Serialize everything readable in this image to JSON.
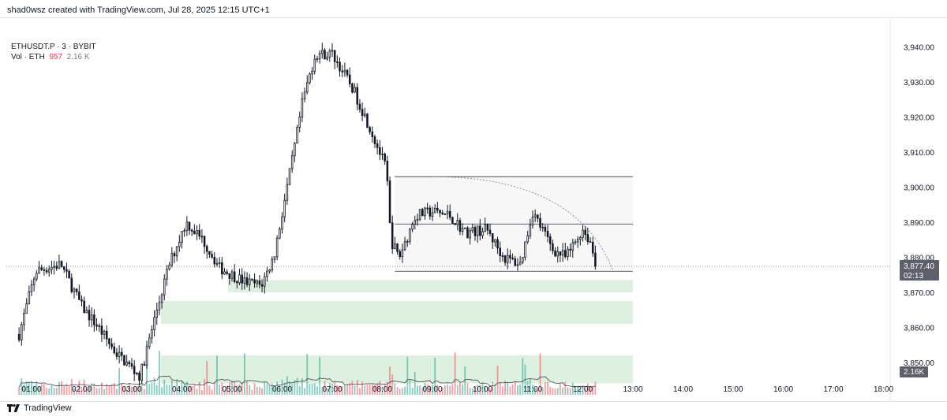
{
  "header": {
    "attribution": "shad0wsz created with TradingView.com, Jul 28, 2025 12:15 UTC+1"
  },
  "legend": {
    "symbol": "ETHUSDT.P · 3 · BYBIT",
    "vol_label": "Vol · ETH",
    "vol_value": "957",
    "vol_ma": "2.16 K"
  },
  "footer": {
    "brand": "TradingView",
    "logo_icon": "tradingview-logo-icon"
  },
  "colors": {
    "up": "#089981",
    "down": "#f23645",
    "candle": "#131722",
    "zone": "#c8e6c9",
    "price_label_bg": "#5d606b"
  },
  "price_label": {
    "price": "3,877.40",
    "countdown": "02:13"
  },
  "volume_label": "2.16K",
  "chart_data": {
    "type": "candlestick",
    "title": "",
    "xlabel": "",
    "ylabel": "",
    "x_ticks": [
      "01:00",
      "02:00",
      "03:00",
      "04:00",
      "05:00",
      "06:00",
      "07:00",
      "08:00",
      "09:00",
      "10:00",
      "11:00",
      "12:00",
      "13:00",
      "14:00",
      "15:00",
      "16:00",
      "17:00",
      "18:00"
    ],
    "y_ticks": [
      "3,850.00",
      "3,860.00",
      "3,870.00",
      "3,880.00",
      "3,890.00",
      "3,900.00",
      "3,910.00",
      "3,920.00",
      "3,930.00",
      "3,940.00"
    ],
    "y_range": [
      3843,
      3946
    ],
    "grid": false,
    "bar_interval_minutes": 3,
    "anchor_points": [
      [
        "00:45",
        3858
      ],
      [
        "01:05",
        3876
      ],
      [
        "01:35",
        3878
      ],
      [
        "02:00",
        3866
      ],
      [
        "02:20",
        3860
      ],
      [
        "02:40",
        3853
      ],
      [
        "03:10",
        3846
      ],
      [
        "03:30",
        3865
      ],
      [
        "03:45",
        3878
      ],
      [
        "04:05",
        3890
      ],
      [
        "04:25",
        3885
      ],
      [
        "04:45",
        3877
      ],
      [
        "05:15",
        3873
      ],
      [
        "05:35",
        3872
      ],
      [
        "05:50",
        3880
      ],
      [
        "06:10",
        3905
      ],
      [
        "06:25",
        3925
      ],
      [
        "06:40",
        3938
      ],
      [
        "07:00",
        3938
      ],
      [
        "07:25",
        3928
      ],
      [
        "07:45",
        3917
      ],
      [
        "08:05",
        3905
      ],
      [
        "08:10",
        3885
      ],
      [
        "08:20",
        3880
      ],
      [
        "08:40",
        3892
      ],
      [
        "09:00",
        3893
      ],
      [
        "09:20",
        3892
      ],
      [
        "09:40",
        3887
      ],
      [
        "10:05",
        3888
      ],
      [
        "10:25",
        3880
      ],
      [
        "10:45",
        3878
      ],
      [
        "11:00",
        3893
      ],
      [
        "11:25",
        3882
      ],
      [
        "11:40",
        3880
      ],
      [
        "12:00",
        3888
      ],
      [
        "12:10",
        3884
      ],
      [
        "12:15",
        3877.4
      ]
    ],
    "zones": [
      {
        "from": "04:55",
        "to": "13:00",
        "low": 3870,
        "high": 3873.5
      },
      {
        "from": "03:35",
        "to": "13:00",
        "low": 3861,
        "high": 3867.5
      },
      {
        "from": "03:35",
        "to": "13:00",
        "low": 3844,
        "high": 3852
      }
    ],
    "range_box": {
      "from": "08:15",
      "to": "13:00",
      "low": 3876,
      "high": 3903,
      "mid": 3889.5
    },
    "arc": {
      "from": "09:00",
      "to": "13:00",
      "top": 3903,
      "bottom": 3876
    }
  }
}
